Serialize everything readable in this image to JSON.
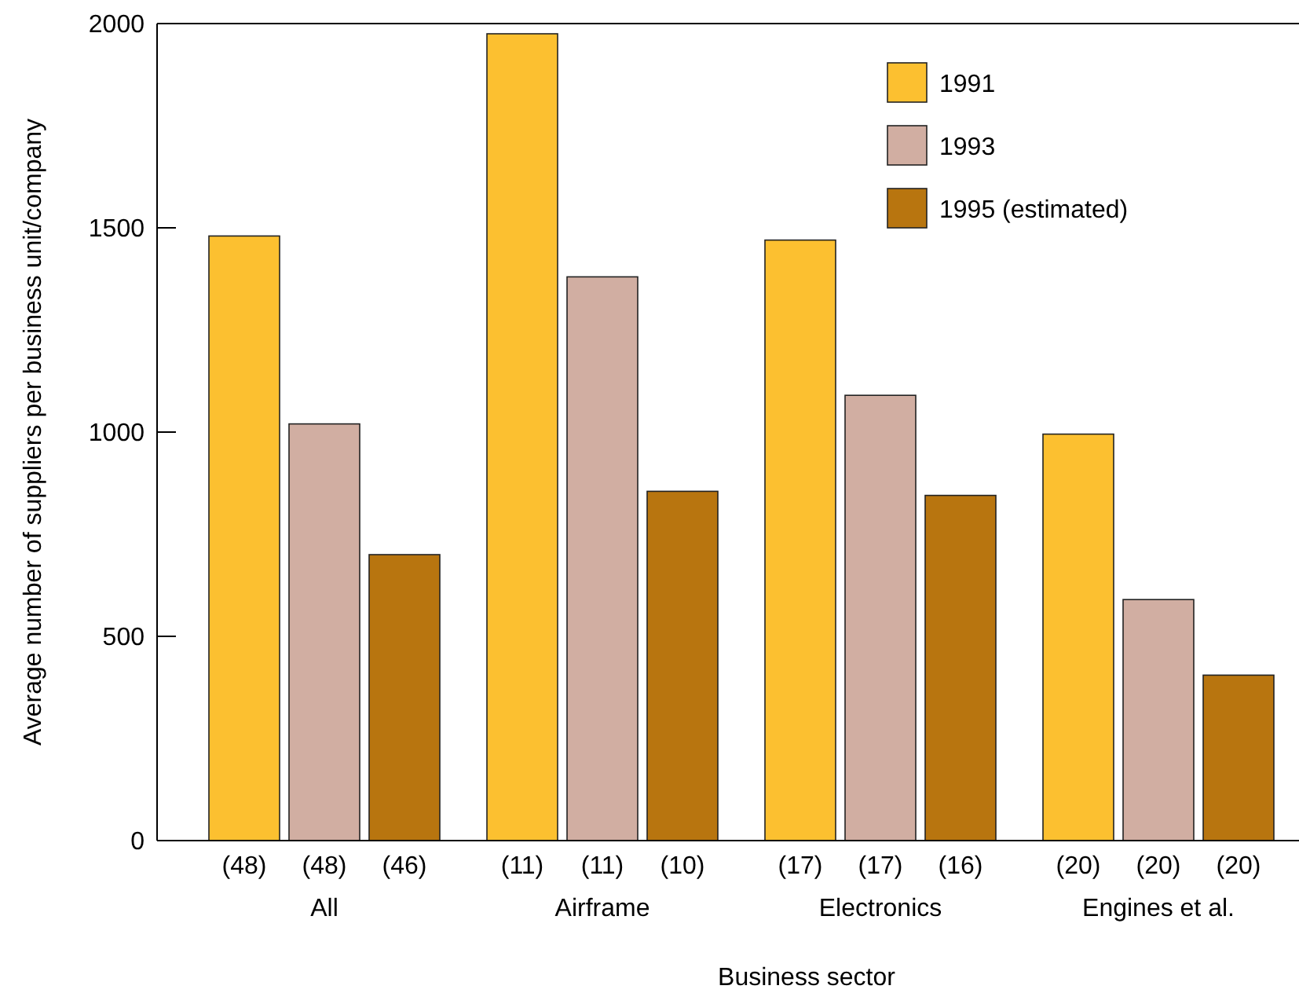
{
  "chart_data": {
    "type": "bar",
    "xlabel": "Business sector",
    "ylabel": "Average number of suppliers per business unit/company",
    "categories": [
      "All",
      "Airframe",
      "Electronics",
      "Engines et al."
    ],
    "series": [
      {
        "name": "1991",
        "color": "#fcc030",
        "values": [
          1480,
          1975,
          1470,
          995
        ]
      },
      {
        "name": "1993",
        "color": "#d1aea2",
        "values": [
          1020,
          1380,
          1090,
          590
        ]
      },
      {
        "name": "1995 (estimated)",
        "color": "#b8750f",
        "values": [
          700,
          855,
          845,
          405
        ]
      }
    ],
    "annotations": [
      "(48)",
      "(48)",
      "(46)",
      "(11)",
      "(11)",
      "(10)",
      "(17)",
      "(17)",
      "(16)",
      "(20)",
      "(20)",
      "(20)"
    ],
    "ylim": [
      0,
      2000
    ],
    "yticks": [
      0,
      500,
      1000,
      1500,
      2000
    ],
    "legend": "top right"
  }
}
